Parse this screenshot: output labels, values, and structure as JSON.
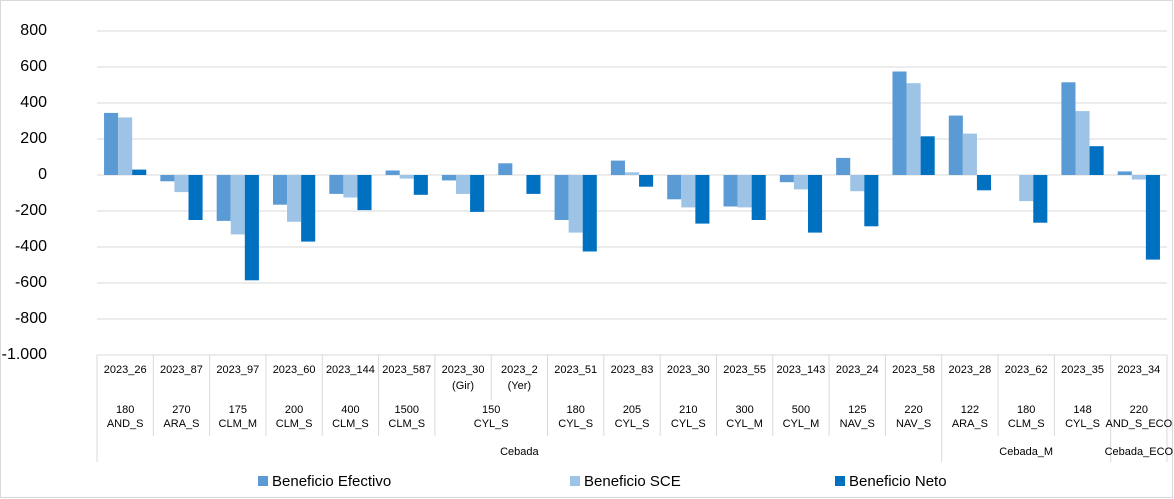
{
  "chart_data": {
    "type": "bar",
    "categories": [
      [
        "2023_26"
      ],
      [
        "2023_87"
      ],
      [
        "2023_97"
      ],
      [
        "2023_60"
      ],
      [
        "2023_144"
      ],
      [
        "2023_587"
      ],
      [
        "2023_30",
        "(Gir)"
      ],
      [
        "2023_2",
        "(Yer)"
      ],
      [
        "2023_51"
      ],
      [
        "2023_83"
      ],
      [
        "2023_30"
      ],
      [
        "2023_55"
      ],
      [
        "2023_143"
      ],
      [
        "2023_24"
      ],
      [
        "2023_58"
      ],
      [
        "2023_28"
      ],
      [
        "2023_62"
      ],
      [
        "2023_35"
      ],
      [
        "2023_34"
      ]
    ],
    "categories_level2": [
      [
        "180",
        "AND_S"
      ],
      [
        "270",
        "ARA_S"
      ],
      [
        "175",
        "CLM_M"
      ],
      [
        "200",
        "CLM_S"
      ],
      [
        "400",
        "CLM_S"
      ],
      [
        "1500",
        "CLM_S"
      ],
      [
        "150",
        "CYL_S"
      ],
      null,
      [
        "180",
        "CYL_S"
      ],
      [
        "205",
        "CYL_S"
      ],
      [
        "210",
        "CYL_S"
      ],
      [
        "300",
        "CYL_M"
      ],
      [
        "500",
        "CYL_M"
      ],
      [
        "125",
        "NAV_S"
      ],
      [
        "220",
        "NAV_S"
      ],
      [
        "122",
        "ARA_S"
      ],
      [
        "180",
        "CLM_S"
      ],
      [
        "148",
        "CYL_S"
      ],
      [
        "220",
        "AND_S_ECO"
      ]
    ],
    "categories_level3": [
      "Cebada",
      null,
      null,
      null,
      null,
      null,
      null,
      null,
      null,
      null,
      null,
      null,
      null,
      null,
      null,
      "Cebada_M",
      null,
      null,
      "Cebada_ECO"
    ],
    "series": [
      {
        "name": "Beneficio Efectivo",
        "color": "#5b9bd5",
        "values": [
          345,
          -35,
          -255,
          -165,
          -105,
          25,
          -30,
          65,
          -250,
          80,
          -135,
          -175,
          -40,
          95,
          575,
          330,
          0,
          515,
          20
        ]
      },
      {
        "name": "Beneficio SCE",
        "color": "#9dc3e6",
        "values": [
          320,
          -95,
          -330,
          -260,
          -125,
          -20,
          -105,
          0,
          -320,
          15,
          -180,
          -180,
          -80,
          -90,
          510,
          230,
          -145,
          355,
          -25
        ]
      },
      {
        "name": "Beneficio Neto",
        "color": "#0070c0",
        "values": [
          30,
          -250,
          -585,
          -370,
          -195,
          -110,
          -205,
          -105,
          -425,
          -65,
          -270,
          -250,
          -320,
          -285,
          215,
          -85,
          -265,
          160,
          -470
        ]
      }
    ],
    "ylim": [
      -1000,
      800
    ],
    "yticks": [
      800,
      600,
      400,
      200,
      0,
      -200,
      -400,
      -600,
      -800,
      {
        "value": -1000,
        "label": "-1.000"
      }
    ],
    "grid": true,
    "legend": "bottom"
  }
}
